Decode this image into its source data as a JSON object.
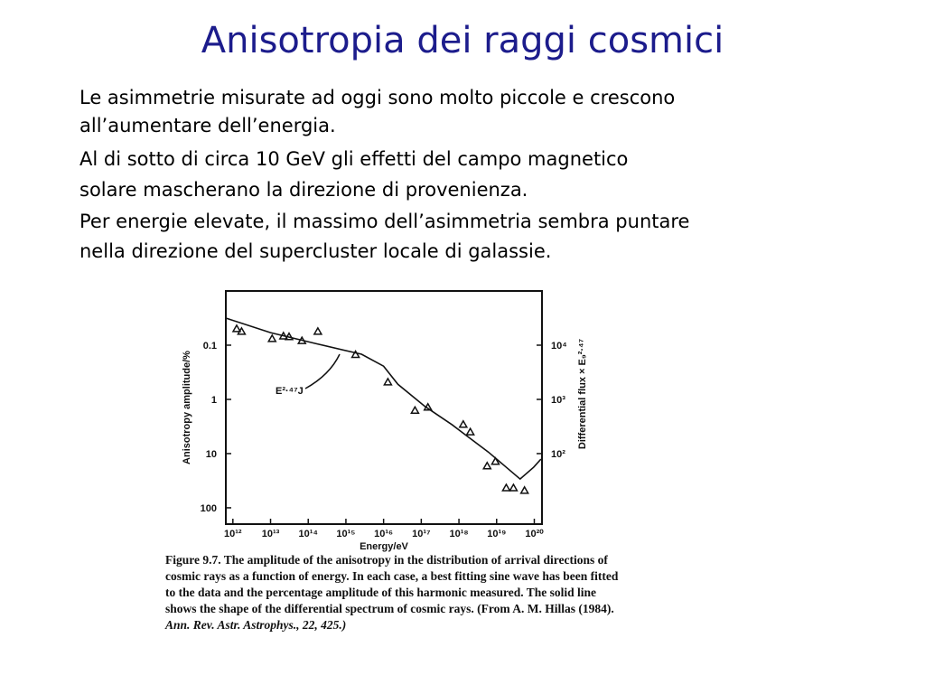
{
  "title": "Anisotropia dei raggi cosmici",
  "body": [
    "Le asimmetrie misurate ad oggi sono molto piccole e crescono",
    "all’aumentare dell’energia.",
    "Al di sotto di circa 10 GeV gli effetti del campo magnetico",
    "solare mascherano la direzione di provenienza.",
    "Per energie elevate, il massimo dell’asimmetria sembra puntare",
    "nella direzione del supercluster locale di galassie."
  ],
  "figure": {
    "chart_data": {
      "type": "scatter",
      "x_label": "Energy/eV",
      "y_label": "Anisotropy amplitude/%",
      "y2_label": "Differential flux × E₉²·⁴⁷",
      "annotation": "E²·⁴⁷J",
      "x_log": true,
      "y_log": true,
      "y_inverted": true,
      "xlim": [
        650000000000.0,
        1.6e+20
      ],
      "ylim": [
        0.01,
        200
      ],
      "y2lim": [
        5,
        100000
      ],
      "xticks": [
        {
          "value": 1000000000000.0,
          "label": "10¹²"
        },
        {
          "value": 10000000000000.0,
          "label": "10¹³"
        },
        {
          "value": 100000000000000.0,
          "label": "10¹⁴"
        },
        {
          "value": 1000000000000000.0,
          "label": "10¹⁵"
        },
        {
          "value": 1e+16,
          "label": "10¹⁶"
        },
        {
          "value": 1e+17,
          "label": "10¹⁷"
        },
        {
          "value": 1e+18,
          "label": "10¹⁸"
        },
        {
          "value": 1e+19,
          "label": "10¹⁹"
        },
        {
          "value": 1e+20,
          "label": "10²⁰"
        }
      ],
      "yticks": [
        0.1,
        1,
        10,
        100
      ],
      "y2ticks": [
        {
          "value": 10000,
          "label": "10⁴"
        },
        {
          "value": 1000,
          "label": "10³"
        },
        {
          "value": 100,
          "label": "10²"
        }
      ],
      "series": [
        {
          "type": "scatter",
          "color": "#111",
          "x": [
            1260000000000.0,
            1700000000000.0,
            11000000000000.0,
            22000000000000.0,
            31000000000000.0,
            68000000000000.0,
            180000000000000.0,
            1800000000000000.0,
            1.3e+16,
            6.8e+16,
            1.5e+17,
            1.3e+18,
            2e+18,
            5.6e+18,
            9.3e+18,
            1.8e+19,
            2.8e+19,
            5.5e+19
          ],
          "values": [
            0.05,
            0.056,
            0.076,
            0.068,
            0.07,
            0.083,
            0.056,
            0.15,
            0.48,
            1.6,
            1.4,
            2.9,
            4,
            17,
            14,
            43,
            43,
            48
          ]
        },
        {
          "type": "line",
          "axis": "y2",
          "color": "#111",
          "x": [
            650000000000.0,
            10000000000000.0,
            160000000000000.0,
            2600000000000000.0,
            1e+16,
            2.4e+16,
            1.26e+17,
            6.6e+17,
            6e+18,
            1.8e+19,
            4.2e+19,
            9.6e+19,
            1.5e+20
          ],
          "values": [
            31600,
            17000,
            10700,
            6800,
            4100,
            1900,
            740,
            340,
            107,
            56,
            34,
            56,
            79
          ]
        }
      ]
    },
    "caption": [
      "Figure 9.7.   The amplitude of the anisotropy in the distribution of arrival directions of",
      "cosmic rays as a function of energy. In each case, a best fitting sine wave has been fitted",
      "to the data and the percentage amplitude of this harmonic measured. The solid line",
      "shows the shape of the differential spectrum of cosmic rays. (From A. M. Hillas (1984).",
      "Ann. Rev. Astr. Astrophys., 22, 425.)"
    ]
  }
}
